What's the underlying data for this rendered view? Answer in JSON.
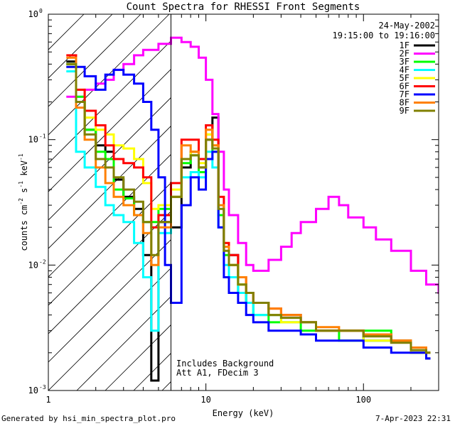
{
  "chart_data": {
    "type": "line",
    "title": "Count Spectra for RHESSI Front Segments",
    "xlabel": "Energy (keV)",
    "ylabel_base": "counts cm",
    "ylabel_sup1": "-2",
    "ylabel_mid1": " s",
    "ylabel_sup2": "-1",
    "ylabel_mid2": " keV",
    "ylabel_sup3": "-1",
    "xscale": "log",
    "yscale": "log",
    "xlim": [
      1,
      300
    ],
    "ylim": [
      0.001,
      1
    ],
    "x_tick_labels": [
      {
        "value": 1,
        "label": "1"
      },
      {
        "value": 10,
        "label": "10"
      },
      {
        "value": 100,
        "label": "100"
      }
    ],
    "y_tick_labels": [
      {
        "value": 1,
        "base": "10",
        "exp": "0"
      },
      {
        "value": 0.1,
        "base": "10",
        "exp": "-1"
      },
      {
        "value": 0.01,
        "base": "10",
        "exp": "-2"
      },
      {
        "value": 0.001,
        "base": "10",
        "exp": "-3"
      }
    ],
    "legend_position": "top-right",
    "date_label": "24-May-2002",
    "time_range_label": "19:15:00 to 19:16:00",
    "annotations": [
      "Includes Background",
      "Att A1, FDecim 3"
    ],
    "hatched_region_max_keV": 6,
    "series": [
      {
        "name": "1F",
        "color": "#000000",
        "points": [
          [
            1.3,
            0.42
          ],
          [
            1.5,
            0.2
          ],
          [
            1.7,
            0.12
          ],
          [
            2.0,
            0.09
          ],
          [
            2.3,
            0.08
          ],
          [
            2.6,
            0.048
          ],
          [
            3.0,
            0.035
          ],
          [
            3.5,
            0.028
          ],
          [
            4.0,
            0.012
          ],
          [
            4.5,
            0.0012
          ],
          [
            5.0,
            0.022
          ],
          [
            6.0,
            0.02
          ],
          [
            7.0,
            0.06
          ],
          [
            8.0,
            0.08
          ],
          [
            9.0,
            0.06
          ],
          [
            10.0,
            0.1
          ],
          [
            11.0,
            0.15
          ],
          [
            12.0,
            0.03
          ],
          [
            13.0,
            0.014
          ],
          [
            14.0,
            0.012
          ],
          [
            16.0,
            0.006
          ],
          [
            18.0,
            0.005
          ],
          [
            20.0,
            0.005
          ],
          [
            25.0,
            0.004
          ],
          [
            30.0,
            0.004
          ],
          [
            40.0,
            0.0035
          ],
          [
            50.0,
            0.003
          ],
          [
            70.0,
            0.003
          ],
          [
            100.0,
            0.0025
          ],
          [
            150.0,
            0.0025
          ],
          [
            200.0,
            0.002
          ],
          [
            250.0,
            0.0018
          ]
        ]
      },
      {
        "name": "2F",
        "color": "#ff00ff",
        "points": [
          [
            1.3,
            0.22
          ],
          [
            1.5,
            0.22
          ],
          [
            1.7,
            0.25
          ],
          [
            2.0,
            0.28
          ],
          [
            2.3,
            0.3
          ],
          [
            2.6,
            0.36
          ],
          [
            3.0,
            0.4
          ],
          [
            3.5,
            0.47
          ],
          [
            4.0,
            0.52
          ],
          [
            5.0,
            0.58
          ],
          [
            6.0,
            0.65
          ],
          [
            7.0,
            0.6
          ],
          [
            8.0,
            0.55
          ],
          [
            9.0,
            0.45
          ],
          [
            10.0,
            0.3
          ],
          [
            11.0,
            0.16
          ],
          [
            12.0,
            0.08
          ],
          [
            13.0,
            0.04
          ],
          [
            14.0,
            0.025
          ],
          [
            16.0,
            0.015
          ],
          [
            18.0,
            0.01
          ],
          [
            20.0,
            0.009
          ],
          [
            25.0,
            0.011
          ],
          [
            30.0,
            0.014
          ],
          [
            35.0,
            0.018
          ],
          [
            40.0,
            0.022
          ],
          [
            50.0,
            0.028
          ],
          [
            60.0,
            0.035
          ],
          [
            70.0,
            0.03
          ],
          [
            80.0,
            0.024
          ],
          [
            100.0,
            0.02
          ],
          [
            120.0,
            0.016
          ],
          [
            150.0,
            0.013
          ],
          [
            200.0,
            0.009
          ],
          [
            250.0,
            0.007
          ],
          [
            300.0,
            0.006
          ]
        ]
      },
      {
        "name": "3F",
        "color": "#00ff00",
        "points": [
          [
            1.3,
            0.4
          ],
          [
            1.5,
            0.22
          ],
          [
            1.7,
            0.12
          ],
          [
            2.0,
            0.08
          ],
          [
            2.3,
            0.07
          ],
          [
            2.6,
            0.04
          ],
          [
            3.0,
            0.034
          ],
          [
            3.5,
            0.025
          ],
          [
            4.0,
            0.022
          ],
          [
            5.0,
            0.028
          ],
          [
            6.0,
            0.035
          ],
          [
            7.0,
            0.065
          ],
          [
            8.0,
            0.075
          ],
          [
            9.0,
            0.055
          ],
          [
            10.0,
            0.11
          ],
          [
            11.0,
            0.08
          ],
          [
            12.0,
            0.025
          ],
          [
            13.0,
            0.012
          ],
          [
            14.0,
            0.01
          ],
          [
            16.0,
            0.007
          ],
          [
            18.0,
            0.005
          ],
          [
            20.0,
            0.004
          ],
          [
            25.0,
            0.0035
          ],
          [
            30.0,
            0.0035
          ],
          [
            40.0,
            0.003
          ],
          [
            50.0,
            0.003
          ],
          [
            70.0,
            0.0025
          ],
          [
            100.0,
            0.003
          ],
          [
            150.0,
            0.0025
          ],
          [
            200.0,
            0.002
          ],
          [
            250.0,
            0.002
          ]
        ]
      },
      {
        "name": "4F",
        "color": "#00ffff",
        "points": [
          [
            1.3,
            0.35
          ],
          [
            1.5,
            0.08
          ],
          [
            1.7,
            0.06
          ],
          [
            2.0,
            0.042
          ],
          [
            2.3,
            0.03
          ],
          [
            2.6,
            0.025
          ],
          [
            3.0,
            0.022
          ],
          [
            3.5,
            0.015
          ],
          [
            4.0,
            0.008
          ],
          [
            4.5,
            0.003
          ],
          [
            5.0,
            0.018
          ],
          [
            6.0,
            0.04
          ],
          [
            7.0,
            0.05
          ],
          [
            8.0,
            0.055
          ],
          [
            9.0,
            0.05
          ],
          [
            10.0,
            0.08
          ],
          [
            11.0,
            0.06
          ],
          [
            12.0,
            0.02
          ],
          [
            13.0,
            0.01
          ],
          [
            14.0,
            0.008
          ],
          [
            16.0,
            0.006
          ],
          [
            18.0,
            0.005
          ],
          [
            20.0,
            0.004
          ],
          [
            25.0,
            0.004
          ],
          [
            30.0,
            0.0035
          ],
          [
            40.0,
            0.0035
          ],
          [
            50.0,
            0.003
          ],
          [
            70.0,
            0.003
          ],
          [
            100.0,
            0.0025
          ],
          [
            150.0,
            0.0025
          ],
          [
            200.0,
            0.0022
          ],
          [
            250.0,
            0.002
          ]
        ]
      },
      {
        "name": "5F",
        "color": "#ffff00",
        "points": [
          [
            1.3,
            0.38
          ],
          [
            1.5,
            0.25
          ],
          [
            1.7,
            0.15
          ],
          [
            2.0,
            0.12
          ],
          [
            2.3,
            0.11
          ],
          [
            2.6,
            0.09
          ],
          [
            3.0,
            0.085
          ],
          [
            3.5,
            0.07
          ],
          [
            4.0,
            0.045
          ],
          [
            4.5,
            0.028
          ],
          [
            5.0,
            0.03
          ],
          [
            6.0,
            0.04
          ],
          [
            7.0,
            0.07
          ],
          [
            8.0,
            0.08
          ],
          [
            9.0,
            0.065
          ],
          [
            10.0,
            0.11
          ],
          [
            11.0,
            0.09
          ],
          [
            12.0,
            0.03
          ],
          [
            13.0,
            0.015
          ],
          [
            14.0,
            0.01
          ],
          [
            16.0,
            0.007
          ],
          [
            18.0,
            0.006
          ],
          [
            20.0,
            0.005
          ],
          [
            25.0,
            0.004
          ],
          [
            30.0,
            0.0035
          ],
          [
            40.0,
            0.0035
          ],
          [
            50.0,
            0.003
          ],
          [
            70.0,
            0.003
          ],
          [
            100.0,
            0.0025
          ],
          [
            150.0,
            0.0025
          ],
          [
            200.0,
            0.002
          ],
          [
            250.0,
            0.002
          ]
        ]
      },
      {
        "name": "6F",
        "color": "#ff0000",
        "points": [
          [
            1.3,
            0.47
          ],
          [
            1.5,
            0.25
          ],
          [
            1.7,
            0.17
          ],
          [
            2.0,
            0.13
          ],
          [
            2.3,
            0.09
          ],
          [
            2.6,
            0.07
          ],
          [
            3.0,
            0.065
          ],
          [
            3.5,
            0.06
          ],
          [
            4.0,
            0.05
          ],
          [
            4.5,
            0.02
          ],
          [
            5.0,
            0.025
          ],
          [
            6.0,
            0.045
          ],
          [
            7.0,
            0.1
          ],
          [
            8.0,
            0.1
          ],
          [
            9.0,
            0.07
          ],
          [
            10.0,
            0.13
          ],
          [
            11.0,
            0.1
          ],
          [
            12.0,
            0.035
          ],
          [
            13.0,
            0.015
          ],
          [
            14.0,
            0.012
          ],
          [
            16.0,
            0.008
          ],
          [
            18.0,
            0.006
          ],
          [
            20.0,
            0.005
          ],
          [
            25.0,
            0.0045
          ],
          [
            30.0,
            0.004
          ],
          [
            40.0,
            0.0035
          ],
          [
            50.0,
            0.003
          ],
          [
            70.0,
            0.003
          ],
          [
            100.0,
            0.0028
          ],
          [
            150.0,
            0.0025
          ],
          [
            200.0,
            0.0022
          ],
          [
            250.0,
            0.002
          ]
        ]
      },
      {
        "name": "7F",
        "color": "#0000ff",
        "points": [
          [
            1.3,
            0.38
          ],
          [
            1.5,
            0.38
          ],
          [
            1.7,
            0.32
          ],
          [
            2.0,
            0.25
          ],
          [
            2.3,
            0.33
          ],
          [
            2.6,
            0.36
          ],
          [
            3.0,
            0.33
          ],
          [
            3.5,
            0.28
          ],
          [
            4.0,
            0.2
          ],
          [
            4.5,
            0.12
          ],
          [
            5.0,
            0.05
          ],
          [
            5.5,
            0.01
          ],
          [
            6.0,
            0.005
          ],
          [
            7.0,
            0.03
          ],
          [
            8.0,
            0.05
          ],
          [
            9.0,
            0.04
          ],
          [
            10.0,
            0.07
          ],
          [
            11.0,
            0.08
          ],
          [
            12.0,
            0.02
          ],
          [
            13.0,
            0.008
          ],
          [
            14.0,
            0.006
          ],
          [
            16.0,
            0.005
          ],
          [
            18.0,
            0.004
          ],
          [
            20.0,
            0.0035
          ],
          [
            25.0,
            0.003
          ],
          [
            30.0,
            0.003
          ],
          [
            40.0,
            0.0028
          ],
          [
            50.0,
            0.0025
          ],
          [
            70.0,
            0.0025
          ],
          [
            100.0,
            0.0022
          ],
          [
            150.0,
            0.002
          ],
          [
            200.0,
            0.002
          ],
          [
            250.0,
            0.0018
          ]
        ]
      },
      {
        "name": "8F",
        "color": "#ff8000",
        "points": [
          [
            1.3,
            0.45
          ],
          [
            1.5,
            0.18
          ],
          [
            1.7,
            0.1
          ],
          [
            2.0,
            0.06
          ],
          [
            2.3,
            0.045
          ],
          [
            2.6,
            0.035
          ],
          [
            3.0,
            0.03
          ],
          [
            3.5,
            0.025
          ],
          [
            4.0,
            0.018
          ],
          [
            4.5,
            0.01
          ],
          [
            5.0,
            0.02
          ],
          [
            6.0,
            0.035
          ],
          [
            7.0,
            0.09
          ],
          [
            8.0,
            0.08
          ],
          [
            9.0,
            0.06
          ],
          [
            10.0,
            0.12
          ],
          [
            11.0,
            0.09
          ],
          [
            12.0,
            0.03
          ],
          [
            13.0,
            0.014
          ],
          [
            14.0,
            0.01
          ],
          [
            16.0,
            0.008
          ],
          [
            18.0,
            0.006
          ],
          [
            20.0,
            0.005
          ],
          [
            25.0,
            0.0045
          ],
          [
            30.0,
            0.004
          ],
          [
            40.0,
            0.0035
          ],
          [
            50.0,
            0.0032
          ],
          [
            70.0,
            0.003
          ],
          [
            100.0,
            0.0028
          ],
          [
            150.0,
            0.0025
          ],
          [
            200.0,
            0.0022
          ],
          [
            250.0,
            0.002
          ]
        ]
      },
      {
        "name": "9F",
        "color": "#808000",
        "points": [
          [
            1.3,
            0.4
          ],
          [
            1.5,
            0.2
          ],
          [
            1.7,
            0.11
          ],
          [
            2.0,
            0.07
          ],
          [
            2.3,
            0.06
          ],
          [
            2.6,
            0.05
          ],
          [
            3.0,
            0.04
          ],
          [
            3.5,
            0.032
          ],
          [
            4.0,
            0.022
          ],
          [
            4.5,
            0.012
          ],
          [
            5.0,
            0.022
          ],
          [
            6.0,
            0.035
          ],
          [
            7.0,
            0.07
          ],
          [
            8.0,
            0.075
          ],
          [
            9.0,
            0.06
          ],
          [
            10.0,
            0.1
          ],
          [
            11.0,
            0.085
          ],
          [
            12.0,
            0.028
          ],
          [
            13.0,
            0.013
          ],
          [
            14.0,
            0.01
          ],
          [
            16.0,
            0.007
          ],
          [
            18.0,
            0.006
          ],
          [
            20.0,
            0.005
          ],
          [
            25.0,
            0.004
          ],
          [
            30.0,
            0.0038
          ],
          [
            40.0,
            0.0035
          ],
          [
            50.0,
            0.003
          ],
          [
            70.0,
            0.003
          ],
          [
            100.0,
            0.0027
          ],
          [
            150.0,
            0.0024
          ],
          [
            200.0,
            0.0021
          ],
          [
            250.0,
            0.002
          ]
        ]
      }
    ]
  },
  "footer": {
    "generated_by": "Generated by hsi_min_spectra_plot.pro",
    "timestamp": "7-Apr-2023 22:31"
  }
}
